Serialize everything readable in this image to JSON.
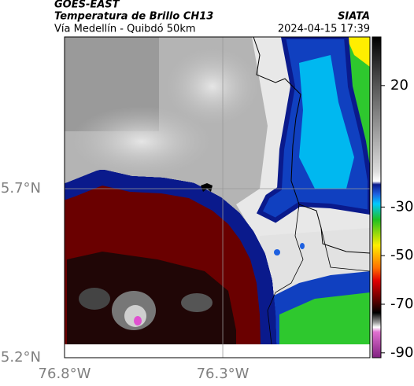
{
  "header": {
    "title": "GOES-EAST",
    "subtitle": "Temperatura de Brillo CH13",
    "location": "Vía Medellín - Quibdó 50km",
    "source": "SIATA",
    "datetime": "2024-04-15 17:39"
  },
  "map": {
    "xlim": [
      -76.8,
      -75.835
    ],
    "ylim": [
      5.2,
      6.149
    ],
    "xticks": [
      {
        "value": -76.8,
        "label": "76.8°W"
      },
      {
        "value": -76.3,
        "label": "76.3°W"
      }
    ],
    "yticks": [
      {
        "value": 5.2,
        "label": "5.2°N"
      },
      {
        "value": 5.7,
        "label": "5.7°N"
      }
    ]
  },
  "colorbar": {
    "range": [
      -92,
      40
    ],
    "ticks": [
      20,
      -30,
      -50,
      -70,
      -90
    ]
  }
}
